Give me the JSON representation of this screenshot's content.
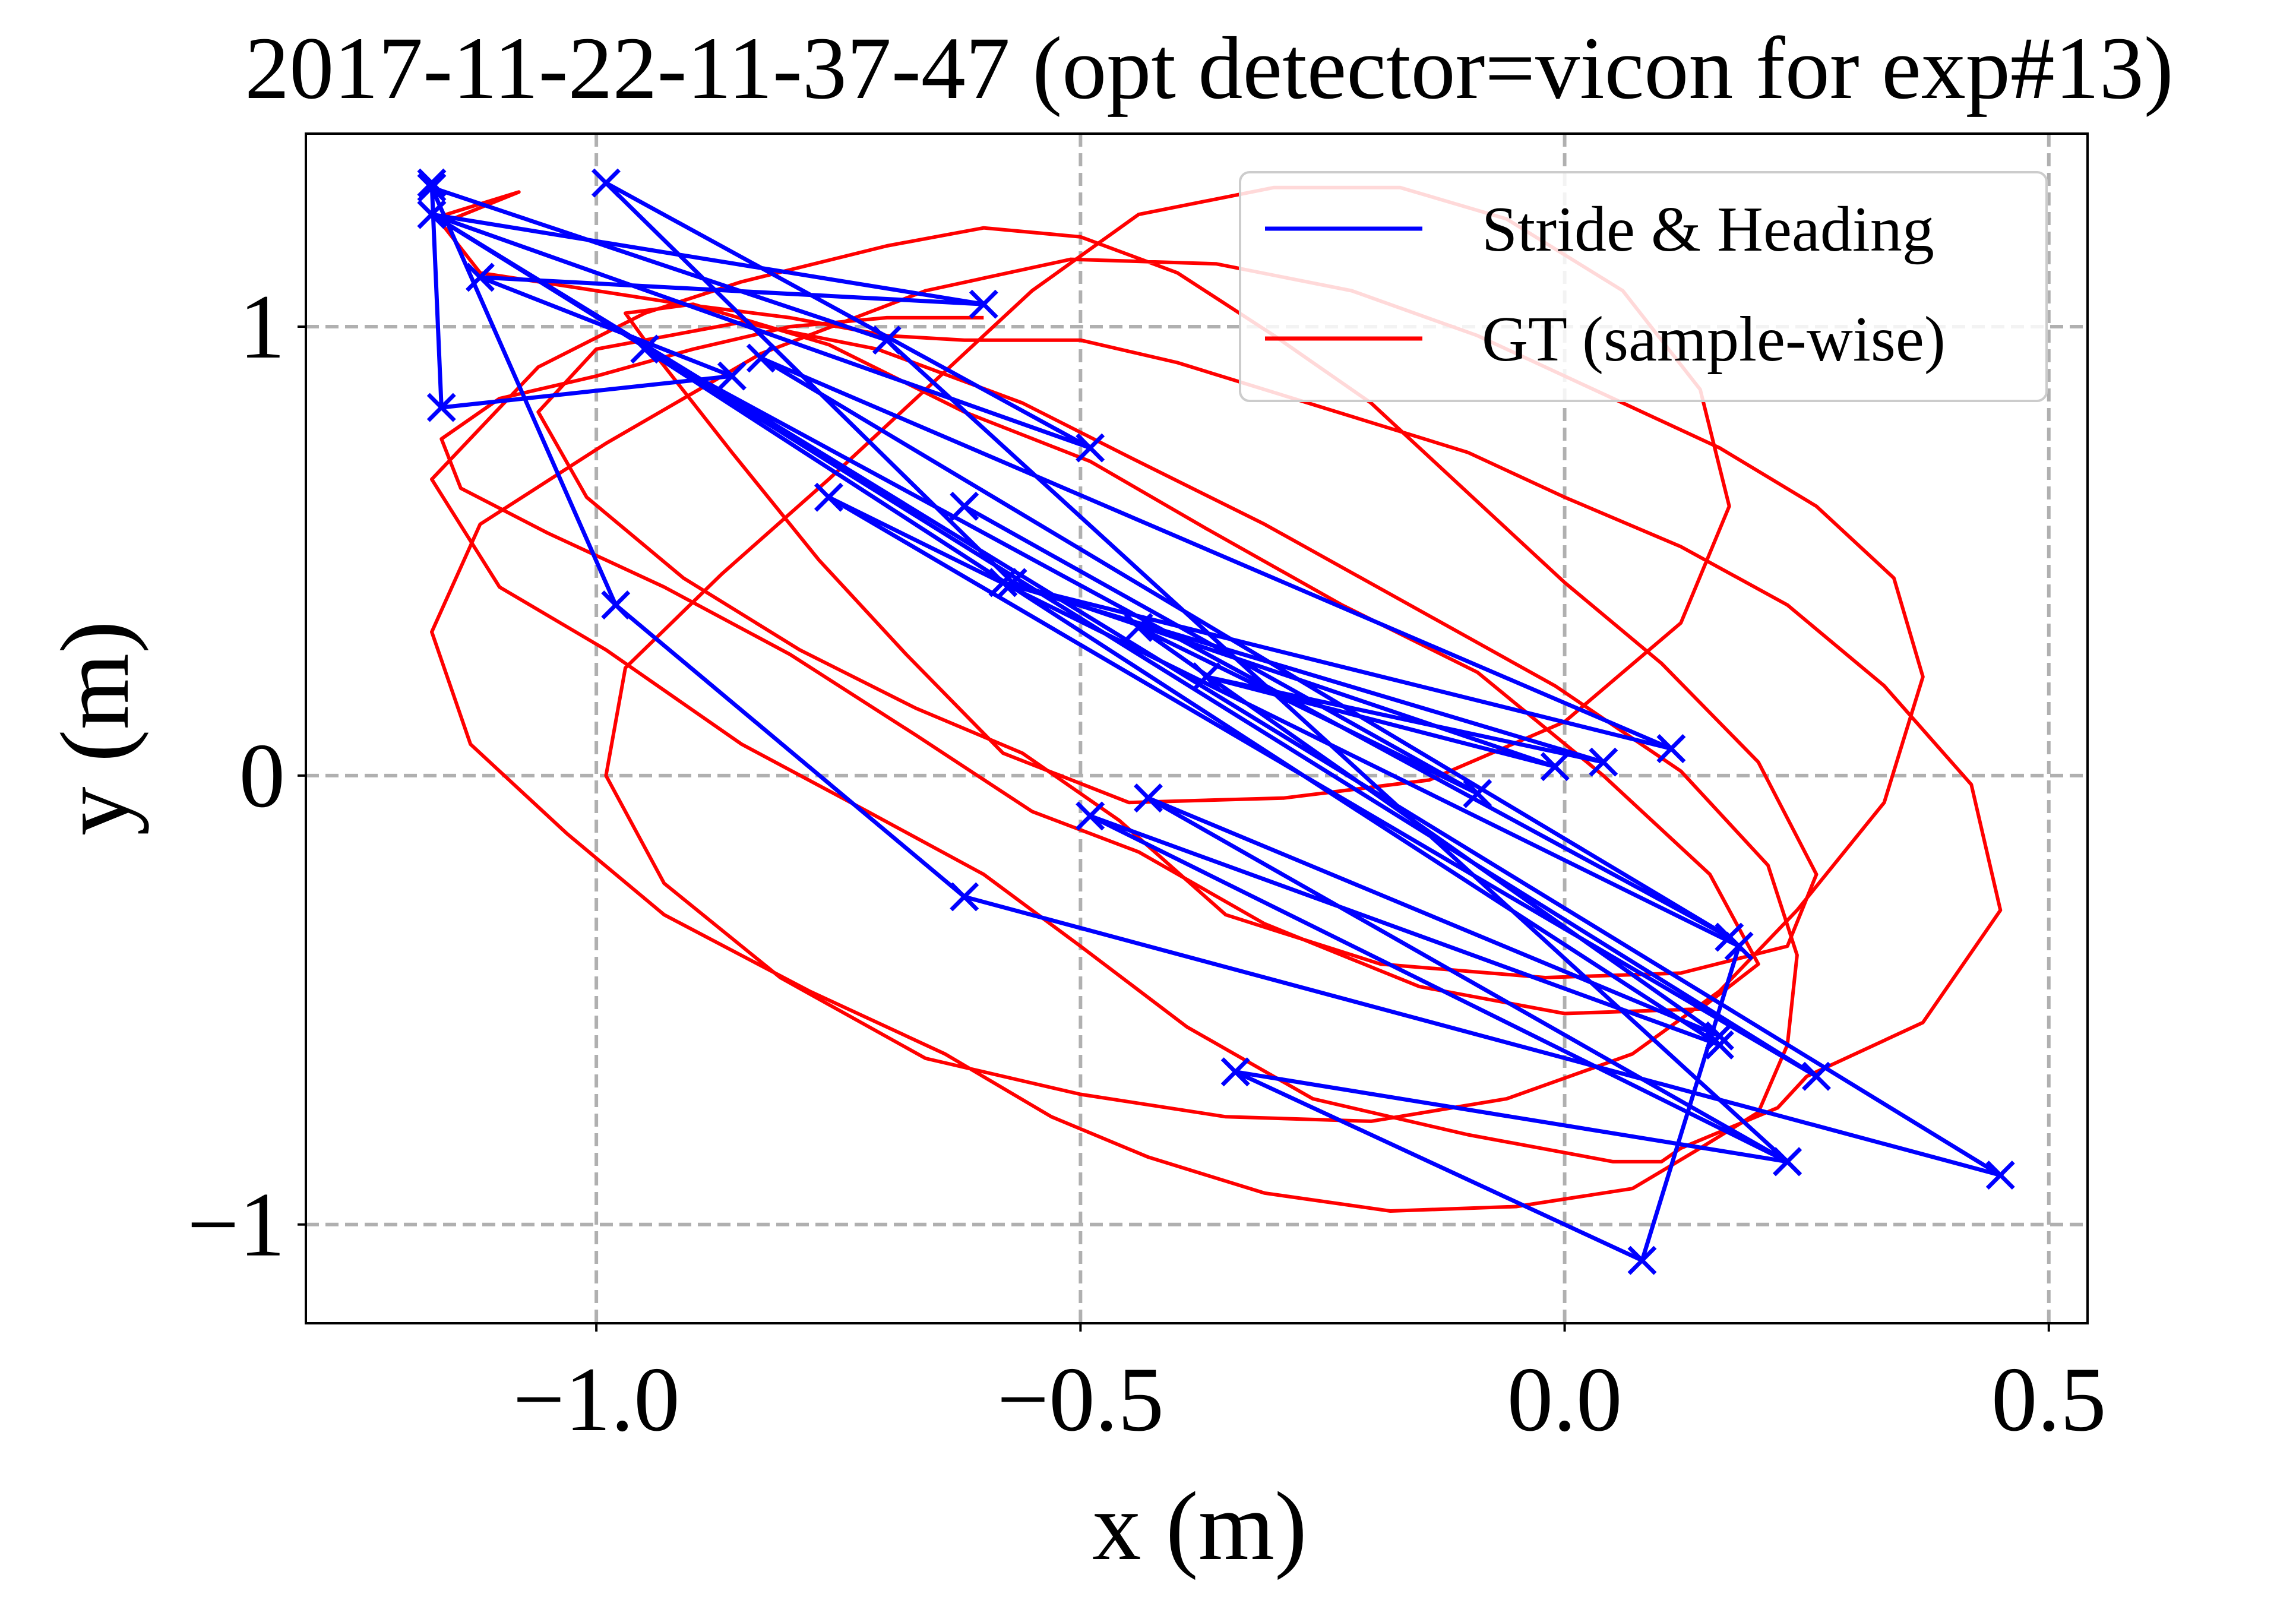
{
  "chart_data": {
    "type": "line",
    "title": "2017-11-22-11-37-47 (opt detector=vicon for exp#13)",
    "xlabel": "x (m)",
    "ylabel": "y (m)",
    "xlim": [
      -1.3,
      0.54
    ],
    "ylim": [
      -1.22,
      1.43
    ],
    "grid": true,
    "legend_position": "top-right",
    "x_ticks": [
      {
        "value": -1.0,
        "label": "−1.0"
      },
      {
        "value": -0.5,
        "label": "−0.5"
      },
      {
        "value": 0.0,
        "label": "0.0"
      },
      {
        "value": 0.5,
        "label": "0.5"
      }
    ],
    "y_ticks": [
      {
        "value": -1,
        "label": "−1"
      },
      {
        "value": 0,
        "label": "0"
      },
      {
        "value": 1,
        "label": "1"
      }
    ],
    "series": [
      {
        "name": "Stride & Heading",
        "color": "#0000ff",
        "marker": "x",
        "x": [
          -1.17,
          -1.16,
          -0.86,
          -1.12,
          -0.6,
          -1.17,
          -0.49,
          -0.99,
          -0.57,
          -0.01,
          -0.37,
          0.04,
          -0.58,
          0.11,
          -0.83,
          0.17,
          -0.95,
          0.16,
          -0.49,
          0.23,
          -0.34,
          0.08,
          0.18,
          -0.76,
          0.26,
          -1.17,
          0.45,
          -0.62,
          -0.98,
          -1.17,
          -0.7,
          0.23,
          -0.43,
          0.16,
          -0.44,
          -0.09,
          -0.62
        ],
        "y": [
          1.32,
          0.82,
          0.89,
          1.11,
          1.05,
          1.25,
          0.73,
          1.32,
          0.43,
          0.02,
          0.22,
          0.03,
          0.43,
          0.06,
          0.93,
          -0.36,
          0.95,
          -0.6,
          -0.09,
          -0.86,
          -0.66,
          -1.08,
          -0.38,
          0.62,
          -0.67,
          1.25,
          -0.89,
          -0.27,
          0.38,
          1.31,
          0.97,
          -0.86,
          -0.05,
          -0.58,
          0.33,
          -0.04,
          0.6
        ]
      },
      {
        "name": "GT (sample-wise)",
        "color": "#ff0000",
        "marker": "none",
        "x": [
          -1.17,
          -1.08,
          -1.16,
          -1.12,
          -1.0,
          -0.91,
          -0.8,
          -0.7,
          -0.62,
          -0.5,
          -0.4,
          -0.25,
          -0.1,
          0.0,
          0.12,
          0.23,
          0.33,
          0.42,
          0.45,
          0.37,
          0.25,
          0.22,
          0.12,
          0.1,
          0.05,
          -0.1,
          -0.26,
          -0.39,
          -0.5,
          -0.6,
          -0.72,
          -0.85,
          -0.99,
          -1.1,
          -1.17,
          -1.06,
          -0.95,
          -0.85,
          -0.7,
          -0.6,
          -0.5,
          -0.4,
          -0.3,
          -0.2,
          -0.1,
          0.0,
          0.1,
          0.2,
          0.26,
          0.23,
          0.12,
          -0.02,
          -0.19,
          -0.35,
          -0.46,
          -0.56,
          -0.67,
          -0.79,
          -0.91,
          -1.01,
          -1.06,
          -1.0,
          -0.85,
          -0.71,
          -0.56,
          -0.45,
          -0.31,
          -0.16,
          -0.01,
          0.12,
          0.21,
          0.24,
          0.23,
          0.2,
          0.14,
          0.07,
          -0.05,
          -0.18,
          -0.31,
          -0.43,
          -0.53,
          -0.64,
          -0.78,
          -0.93,
          -1.03,
          -1.13,
          -1.17,
          -1.12,
          -0.99,
          -0.83,
          -0.66,
          -0.51,
          -0.36,
          -0.22,
          -0.09,
          0.04,
          0.16,
          0.26,
          0.34,
          0.37,
          0.33,
          0.24,
          0.16,
          0.07,
          -0.06,
          -0.2,
          -0.35,
          -0.5,
          -0.66,
          -0.81,
          -0.93,
          -0.99,
          -0.97,
          -0.87,
          -0.76,
          -0.65,
          -0.55,
          -0.44,
          -0.3,
          -0.17,
          -0.06,
          0.06,
          0.14,
          0.17,
          0.12,
          0.0,
          -0.14,
          -0.29,
          -0.45,
          -0.58,
          -0.68,
          -0.77,
          -0.86,
          -0.94,
          -0.97,
          -0.9,
          -0.76,
          -0.62,
          -0.49,
          -0.37,
          -0.23,
          -0.09,
          0.04,
          0.15,
          0.2,
          0.14,
          0.0,
          -0.15,
          -0.31,
          -0.44,
          -0.55,
          -0.67,
          -0.8,
          -0.93,
          -1.05,
          -1.14,
          -1.16,
          -1.1,
          -1.0,
          -0.9,
          -0.8,
          -0.7,
          -0.6
        ],
        "y": [
          1.24,
          1.3,
          1.23,
          1.12,
          1.08,
          1.05,
          1.02,
          0.98,
          0.97,
          0.97,
          0.92,
          0.82,
          0.72,
          0.62,
          0.51,
          0.38,
          0.2,
          -0.02,
          -0.3,
          -0.55,
          -0.67,
          -0.74,
          -0.83,
          -0.86,
          -0.86,
          -0.8,
          -0.72,
          -0.56,
          -0.38,
          -0.22,
          -0.08,
          0.07,
          0.28,
          0.42,
          0.66,
          0.91,
          1.03,
          1.1,
          1.18,
          1.22,
          1.2,
          1.12,
          0.98,
          0.83,
          0.63,
          0.43,
          0.25,
          0.03,
          -0.22,
          -0.38,
          -0.44,
          -0.45,
          -0.42,
          -0.31,
          -0.1,
          0.05,
          0.15,
          0.28,
          0.44,
          0.62,
          0.81,
          0.95,
          1.01,
          0.95,
          0.83,
          0.71,
          0.56,
          0.38,
          0.2,
          0.01,
          -0.2,
          -0.4,
          -0.6,
          -0.75,
          -0.83,
          -0.92,
          -0.96,
          -0.97,
          -0.93,
          -0.85,
          -0.76,
          -0.62,
          -0.48,
          -0.31,
          -0.13,
          0.07,
          0.32,
          0.56,
          0.74,
          0.94,
          1.08,
          1.15,
          1.14,
          1.08,
          0.98,
          0.85,
          0.73,
          0.6,
          0.44,
          0.22,
          -0.06,
          -0.3,
          -0.48,
          -0.62,
          -0.72,
          -0.77,
          -0.76,
          -0.71,
          -0.63,
          -0.45,
          -0.24,
          0.0,
          0.24,
          0.45,
          0.66,
          0.88,
          1.08,
          1.25,
          1.31,
          1.31,
          1.24,
          1.08,
          0.86,
          0.6,
          0.34,
          0.12,
          -0.01,
          -0.05,
          -0.06,
          0.05,
          0.27,
          0.48,
          0.72,
          0.94,
          1.03,
          1.05,
          0.96,
          0.81,
          0.7,
          0.55,
          0.38,
          0.23,
          0.0,
          -0.22,
          -0.42,
          -0.52,
          -0.53,
          -0.47,
          -0.33,
          -0.17,
          -0.08,
          0.09,
          0.27,
          0.42,
          0.54,
          0.64,
          0.75,
          0.84,
          0.89,
          0.95,
          1.0,
          1.02,
          1.02
        ]
      }
    ]
  }
}
